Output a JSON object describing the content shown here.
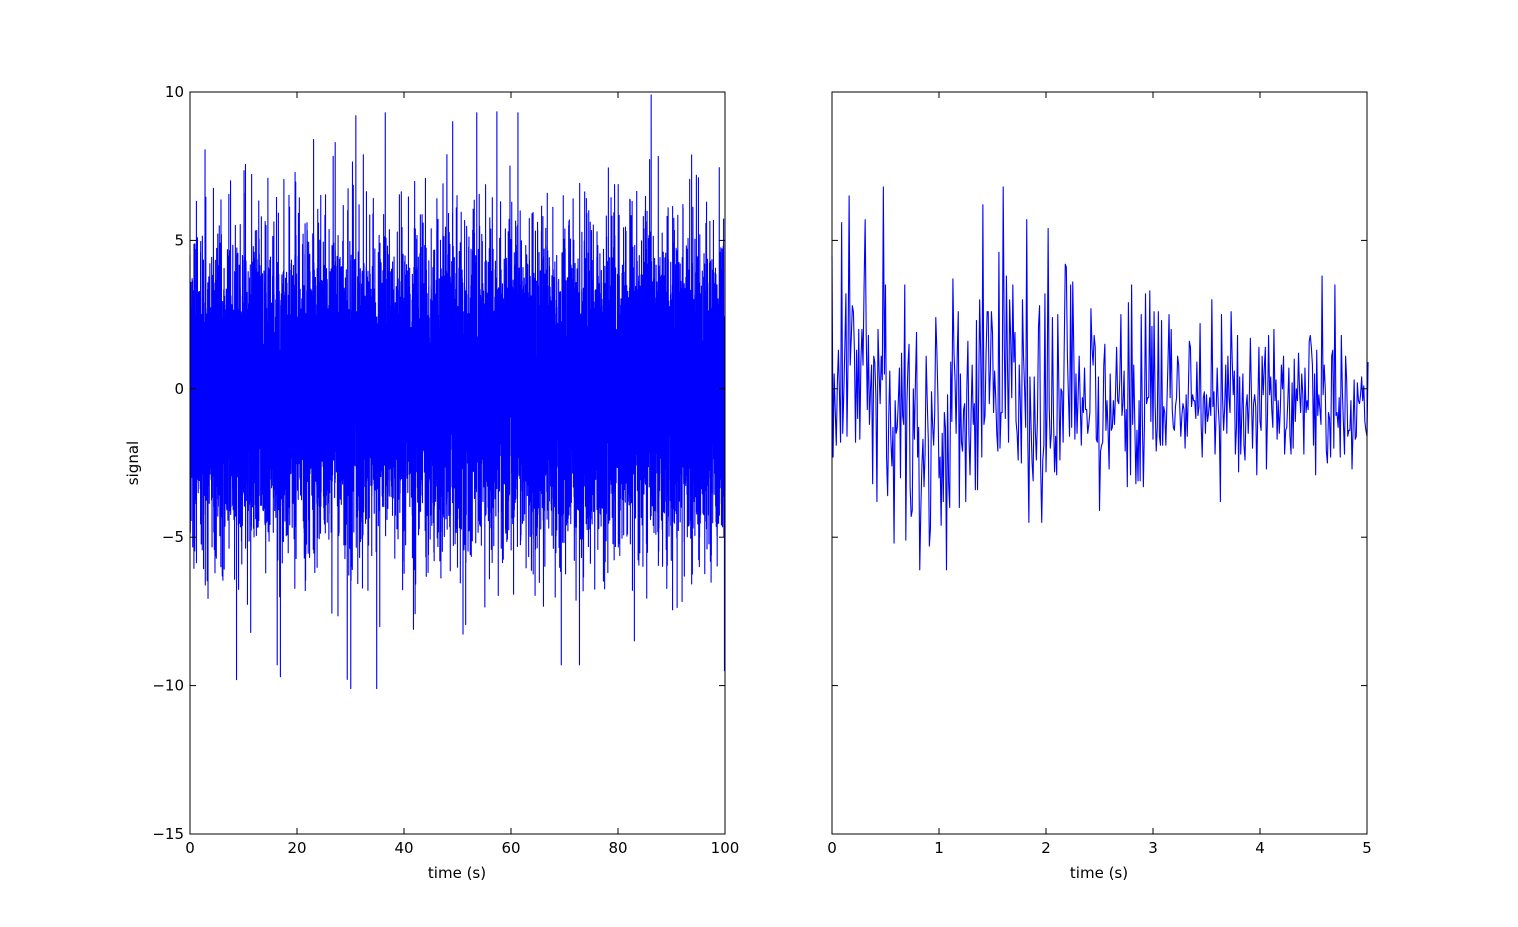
{
  "figure": {
    "line_color": "#0000ff",
    "background": "#ffffff"
  },
  "chart_data": [
    {
      "type": "line",
      "title": "",
      "xlabel": "time (s)",
      "ylabel": "signal",
      "xlim": [
        0,
        100
      ],
      "ylim": [
        -15,
        10
      ],
      "xticks": [
        0,
        20,
        40,
        60,
        80,
        100
      ],
      "xtick_labels": [
        "0",
        "20",
        "40",
        "60",
        "80",
        "100"
      ],
      "yticks": [
        10,
        5,
        0,
        -5,
        -10,
        -15
      ],
      "ytick_labels": [
        "10",
        "5",
        "0",
        "−5",
        "−10",
        "−15"
      ],
      "grid": false,
      "legend": "none",
      "series": [
        {
          "color": "#0000ff",
          "description_of_data": "dense noise signal sampled every 0.01 s from 0 to 100 s, values roughly between -10 and 10",
          "sample_points": [
            {
              "x": 0,
              "y": 4.5
            },
            {
              "x": 8.7,
              "y": -9.8
            },
            {
              "x": 16.3,
              "y": -9.3
            },
            {
              "x": 16.9,
              "y": -9.7
            },
            {
              "x": 23.1,
              "y": 8.4
            },
            {
              "x": 31.0,
              "y": 9.2
            },
            {
              "x": 34.9,
              "y": -10.1
            },
            {
              "x": 36.5,
              "y": 9.3
            },
            {
              "x": 49.1,
              "y": 9.0
            },
            {
              "x": 53.6,
              "y": 9.3
            },
            {
              "x": 61.3,
              "y": 9.3
            },
            {
              "x": 69.4,
              "y": -9.3
            },
            {
              "x": 72.8,
              "y": -9.3
            },
            {
              "x": 86.2,
              "y": 9.9
            },
            {
              "x": 99.9,
              "y": -9.5
            }
          ]
        }
      ]
    },
    {
      "type": "line",
      "title": "",
      "xlabel": "time (s)",
      "ylabel": "",
      "xlim": [
        0,
        5
      ],
      "ylim": [
        -15,
        10
      ],
      "xticks": [
        0,
        1,
        2,
        3,
        4,
        5
      ],
      "xtick_labels": [
        "0",
        "1",
        "2",
        "3",
        "4",
        "5"
      ],
      "yticks": [
        10,
        5,
        0,
        -5,
        -10,
        -15
      ],
      "ytick_labels": [],
      "grid": false,
      "legend": "none",
      "series": [
        {
          "color": "#0000ff",
          "x_start": 0,
          "x_step": 0.01,
          "y": [
            4.5,
            -2.3,
            0.5,
            -0.7,
            -1.9,
            0.2,
            1.3,
            -0.2,
            -1.8,
            5.6,
            -1.5,
            -0.2,
            1.4,
            3.2,
            -1.6,
            1.0,
            6.5,
            0.8,
            1.7,
            2.8,
            2.6,
            1.2,
            -1.8,
            1.3,
            -1.0,
            2.0,
            -1.7,
            0.9,
            2.0,
            0.8,
            3.5,
            5.7,
            1.8,
            -0.7,
            1.8,
            -1.2,
            0.0,
            0.8,
            -3.2,
            1.1,
            0.9,
            -0.2,
            -3.8,
            2.0,
            0.6,
            -0.5,
            1.1,
            0.3,
            6.8,
            0.5,
            3.5,
            -2.3,
            -3.6,
            -1.0,
            0.6,
            -1.7,
            -2.6,
            -1.3,
            -5.2,
            -0.4,
            -1.5,
            -1.3,
            -0.4,
            0.7,
            -3.0,
            1.2,
            -0.9,
            -1.2,
            3.5,
            -5.1,
            -0.5,
            0.8,
            1.5,
            -3.3,
            -4.3,
            -4.1,
            0.0,
            -1.7,
            0.3,
            1.9,
            -2.3,
            -1.3,
            -6.1,
            -4.1,
            -2.6,
            -1.7,
            -3.3,
            -2.2,
            1.1,
            -0.4,
            -1.7,
            -5.3,
            -4.7,
            -0.1,
            -1.2,
            -1.9,
            -0.8,
            2.4,
            1.3,
            -0.3,
            -3.0,
            -2.3,
            -4.6,
            -1.5,
            -3.8,
            -0.8,
            -1.3,
            -6.1,
            -0.2,
            -3.2,
            -4.0,
            0.9,
            -1.1,
            3.7,
            1.2,
            0.3,
            -1.5,
            1.1,
            2.6,
            -4.0,
            0.5,
            -1.8,
            -2.1,
            -0.7,
            -0.5,
            -3.8,
            0.0,
            1.6,
            -1.6,
            -2.9,
            -0.8,
            0.8,
            -1.2,
            -0.5,
            -3.4,
            2.3,
            -3.4,
            -0.4,
            3.0,
            1.1,
            -2.3,
            6.2,
            -1.2,
            -0.9,
            1.2,
            2.6,
            2.6,
            -0.5,
            0.6,
            2.6,
            1.9,
            -0.8,
            0.6,
            -0.3,
            -1.5,
            -2.1,
            4.6,
            -2.0,
            -0.8,
            -0.8,
            6.8,
            1.5,
            -1.0,
            3.8,
            0.8,
            -1.8,
            3.0,
            1.7,
            -0.3,
            3.5,
            0.9,
            1.9,
            -1.1,
            -1.5,
            -2.4,
            0.8,
            -0.5,
            -2.5,
            3.0,
            1.1,
            0.0,
            -1.3,
            5.7,
            -1.7,
            -4.5,
            0.4,
            -1.2,
            -2.5,
            -3.1,
            0.4,
            -1.4,
            -2.4,
            -1.0,
            2.1,
            2.8,
            -2.6,
            -4.5,
            -2.4,
            -1.9,
            3.2,
            -2.8,
            -0.7,
            5.4,
            -0.6,
            -2.0,
            -1.5,
            2.4,
            -0.9,
            -2.8,
            -1.6,
            -2.9,
            2.5,
            0.1,
            -2.4,
            0.0,
            -0.1,
            -1.8,
            1.3,
            4.2,
            4.1,
            1.1,
            -0.3,
            -1.6,
            3.5,
            -1.3,
            3.6,
            1.2,
            -1.7,
            0.5,
            -1.5,
            -0.3,
            1.1,
            -0.5,
            -1.9,
            -0.3,
            -0.8,
            0.7,
            -0.7,
            -0.7,
            -1.5,
            -1.2,
            -0.8,
            2.7,
            1.4,
            0.8,
            1.8,
            1.4,
            -1.7,
            -1.8,
            0.4,
            -4.1,
            -2.1,
            -1.9,
            -1.8,
            0.8,
            1.5,
            -1.4,
            -0.4,
            -1.4,
            -2.7,
            0.5,
            -1.4,
            -1.3,
            -0.4,
            -1.2,
            -0.1,
            1.4,
            -0.4,
            -0.5,
            0.3,
            2.5,
            -0.9,
            -0.5,
            0.6,
            -2.1,
            -0.7,
            -3.3,
            2.9,
            -0.1,
            -2.9,
            3.5,
            -1.2,
            0.8,
            -1.2,
            -3.2,
            -1.4,
            -3.1,
            -0.4,
            -3.1,
            2.5,
            -0.9,
            -3.3,
            -1.2,
            3.2,
            -0.5,
            -0.3,
            -0.3,
            3.3,
            -1.1,
            2.1,
            -1.7,
            2.6,
            -0.5,
            -2.1,
            -1.3,
            2.6,
            -1.6,
            -1.9,
            2.3,
            -1.9,
            -0.6,
            -0.8,
            -1.9,
            -0.5,
            0.9,
            2.5,
            -0.3,
            2.0,
            -0.7,
            -1.3,
            -1.4,
            -0.6,
            -0.3,
            1.1,
            0.8,
            -0.6,
            -1.6,
            -0.9,
            -0.5,
            -0.7,
            -2.0,
            -0.2,
            -1.6,
            -0.1,
            1.6,
            1.4,
            -0.6,
            -0.2,
            -0.4,
            -0.4,
            -1.0,
            0.9,
            -0.9,
            -0.6,
            2.2,
            -1.2,
            -2.3,
            -0.3,
            -0.1,
            -1.5,
            -0.2,
            -1.1,
            -0.8,
            -0.3,
            -0.9,
            3.0,
            -0.6,
            -0.1,
            -2.2,
            -0.8,
            0.7,
            -0.6,
            -1.3,
            -3.8,
            2.5,
            -0.3,
            -1.4,
            -0.6,
            0.8,
            -1.5,
            1.1,
            -0.3,
            -0.8,
            2.6,
            1.0,
            -0.2,
            0.6,
            -2.2,
            -1.3,
            1.8,
            -2.8,
            0.4,
            -2.2,
            -0.8,
            0.5,
            -1.9,
            -2.4,
            -0.6,
            -0.2,
            -1.5,
            -0.4,
            1.7,
            -0.2,
            -2.0,
            -0.5,
            -0.2,
            -0.6,
            -2.9,
            -0.5,
            1.4,
            -1.1,
            -1.4,
            1.1,
            -0.2,
            0.7,
            1.4,
            -2.7,
            -0.9,
            1.8,
            -0.2,
            0.4,
            -0.7,
            -1.3,
            2.0,
            -0.4,
            0.3,
            -1.7,
            -0.4,
            -1.5,
            -0.7,
            0.8,
            0.0,
            1.1,
            -2.2,
            -1.4,
            -1.3,
            -0.4,
            0.7,
            -1.6,
            -2.2,
            0.2,
            -2.0,
            1.0,
            -1.1,
            0.0,
            -0.4,
            1.2,
            -0.1,
            -0.8,
            0.5,
            -0.2,
            -2.2,
            0.7,
            -0.8,
            -0.4,
            -0.7,
            1.6,
            1.8,
            1.4,
            0.8,
            -1.9,
            0.5,
            -2.9,
            1.3,
            -0.9,
            -0.2,
            -0.7,
            -1.2,
            3.8,
            -0.2,
            0.8,
            0.0,
            -2.1,
            -2.5,
            -0.8,
            -1.0,
            -2.3,
            1.1,
            1.3,
            -2.0,
            3.5,
            -0.9,
            -0.8,
            -1.3,
            -0.3,
            -2.3,
            1.8,
            -0.1,
            -1.2,
            -2.2,
            1.1,
            0.3,
            -1.6,
            -1.4,
            -1.4,
            -0.4,
            -2.7,
            -1.3,
            0.3,
            -1.7,
            -1.6,
            0.2,
            -0.4,
            -0.5,
            -0.2,
            0.4,
            -0.4,
            0.1,
            -1.1,
            -1.4,
            -1.6,
            0.9
          ]
        }
      ]
    }
  ]
}
